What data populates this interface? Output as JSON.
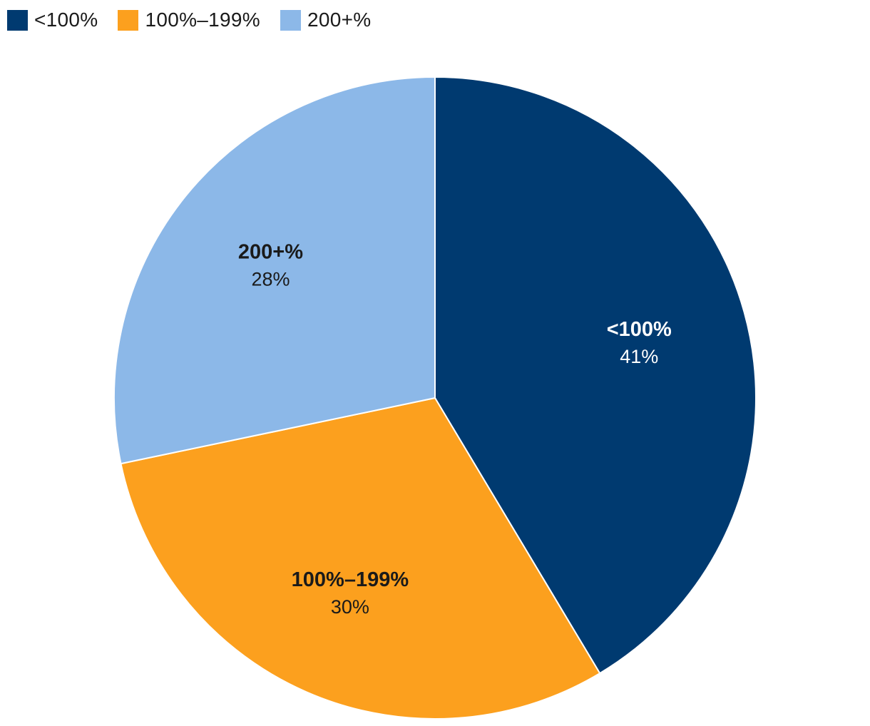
{
  "chart_data": {
    "type": "pie",
    "title": "",
    "categories": [
      "<100%",
      "100%–199%",
      "200+%"
    ],
    "values": [
      41,
      30,
      28
    ],
    "value_labels": [
      "41%",
      "30%",
      "28%"
    ],
    "colors": [
      "#003a70",
      "#fca01e",
      "#8cb8e8"
    ],
    "label_colors": [
      "#ffffff",
      "#1a1a1a",
      "#1a1a1a"
    ],
    "legend_position": "top-left",
    "start_angle_deg": 0,
    "direction": "clockwise"
  }
}
